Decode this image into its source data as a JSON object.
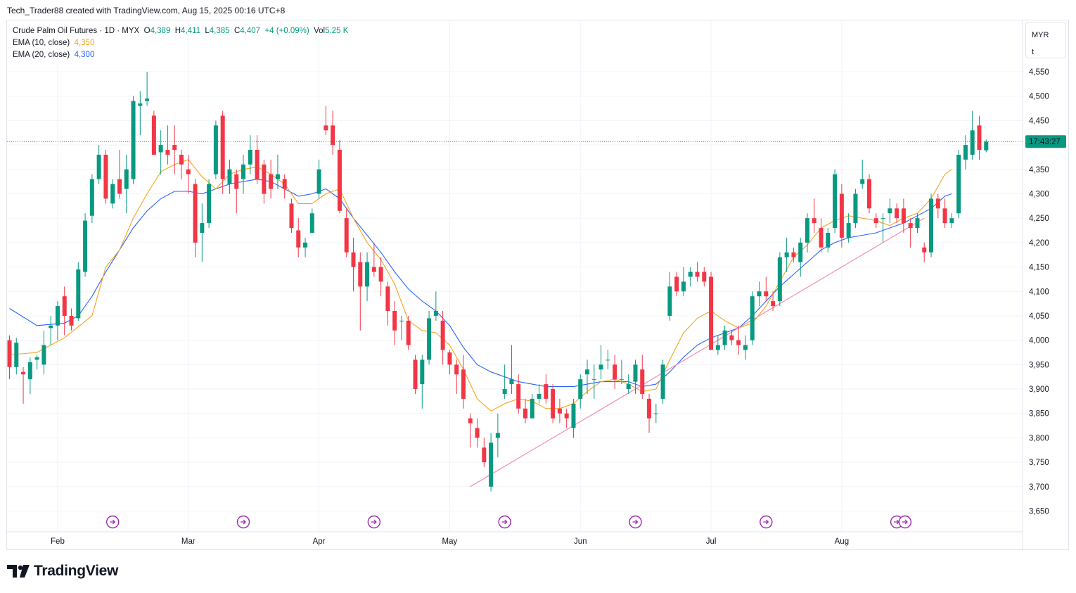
{
  "header": {
    "caption": "Tech_Trader88 created with TradingView.com, Aug 15, 2025 00:16 UTC+8"
  },
  "legend": {
    "symbol": "Crude Palm Oil Futures · 1D · MYX",
    "o_label": "O",
    "o_value": "4,389",
    "h_label": "H",
    "h_value": "4,411",
    "l_label": "L",
    "l_value": "4,385",
    "c_label": "C",
    "c_value": "4,407",
    "change": "+4 (+0.09%)",
    "vol_label": "Vol",
    "vol_value": "5.25 K",
    "ema10_label": "EMA (10, close)",
    "ema10_value": "4,350",
    "ema20_label": "EMA (20, close)",
    "ema20_value": "4,300"
  },
  "currency": {
    "code": "MYR",
    "unit": "t"
  },
  "countdown": "17:43:27",
  "brand": {
    "name": "TradingView"
  },
  "colors": {
    "up": "#089981",
    "down": "#f23645",
    "ema10": "#f7a21b",
    "ema20": "#2962ff",
    "trendline": "#f48fb1",
    "event_marker": "#9c27b0",
    "grid": "#f0f3fa"
  },
  "chart_data": {
    "type": "candlestick",
    "ylim": [
      3620,
      4600
    ],
    "y_ticks": [
      3650,
      3700,
      3750,
      3800,
      3850,
      3900,
      3950,
      4000,
      4050,
      4100,
      4150,
      4200,
      4250,
      4300,
      4350,
      4400,
      4450,
      4500,
      4550
    ],
    "y_tick_labels": [
      "3,650",
      "3,700",
      "3,750",
      "3,800",
      "3,850",
      "3,900",
      "3,950",
      "4,000",
      "4,050",
      "4,100",
      "4,150",
      "4,200",
      "4,250",
      "4,300",
      "4,350",
      "",
      "4,450",
      "4,500",
      "4,550"
    ],
    "x_ticks": [
      {
        "label": "Feb",
        "bar": 7
      },
      {
        "label": "Mar",
        "bar": 26
      },
      {
        "label": "Apr",
        "bar": 45
      },
      {
        "label": "May",
        "bar": 64
      },
      {
        "label": "Jun",
        "bar": 83
      },
      {
        "label": "Jul",
        "bar": 102
      },
      {
        "label": "Aug",
        "bar": 121
      }
    ],
    "current_price": 4407,
    "ohlc": [
      [
        4000,
        4010,
        3920,
        3945
      ],
      [
        3945,
        4005,
        3930,
        3995
      ],
      [
        3935,
        3945,
        3870,
        3930
      ],
      [
        3920,
        3965,
        3890,
        3955
      ],
      [
        3960,
        3970,
        3940,
        3965
      ],
      [
        3950,
        4020,
        3930,
        3990
      ],
      [
        4025,
        4050,
        3990,
        4030
      ],
      [
        4030,
        4080,
        4000,
        4070
      ],
      [
        4090,
        4110,
        4010,
        4050
      ],
      [
        4050,
        4065,
        4020,
        4030
      ],
      [
        4045,
        4160,
        4040,
        4145
      ],
      [
        4140,
        4260,
        4130,
        4245
      ],
      [
        4255,
        4340,
        4240,
        4330
      ],
      [
        4330,
        4400,
        4320,
        4380
      ],
      [
        4380,
        4390,
        4280,
        4290
      ],
      [
        4280,
        4330,
        4270,
        4320
      ],
      [
        4330,
        4390,
        4290,
        4300
      ],
      [
        4310,
        4380,
        4260,
        4350
      ],
      [
        4330,
        4500,
        4320,
        4490
      ],
      [
        4480,
        4510,
        4420,
        4485
      ],
      [
        4490,
        4550,
        4480,
        4495
      ],
      [
        4460,
        4470,
        4380,
        4380
      ],
      [
        4385,
        4430,
        4340,
        4400
      ],
      [
        4390,
        4440,
        4360,
        4380
      ],
      [
        4400,
        4440,
        4340,
        4390
      ],
      [
        4380,
        4390,
        4330,
        4360
      ],
      [
        4350,
        4380,
        4300,
        4340
      ],
      [
        4320,
        4330,
        4170,
        4200
      ],
      [
        4220,
        4280,
        4160,
        4240
      ],
      [
        4240,
        4330,
        4230,
        4320
      ],
      [
        4340,
        4450,
        4330,
        4440
      ],
      [
        4460,
        4470,
        4300,
        4330
      ],
      [
        4320,
        4370,
        4300,
        4350
      ],
      [
        4340,
        4350,
        4260,
        4310
      ],
      [
        4330,
        4380,
        4300,
        4360
      ],
      [
        4360,
        4420,
        4340,
        4390
      ],
      [
        4390,
        4420,
        4320,
        4330
      ],
      [
        4360,
        4370,
        4280,
        4300
      ],
      [
        4340,
        4370,
        4290,
        4310
      ],
      [
        4330,
        4380,
        4310,
        4340
      ],
      [
        4330,
        4340,
        4290,
        4310
      ],
      [
        4280,
        4290,
        4220,
        4230
      ],
      [
        4225,
        4250,
        4170,
        4190
      ],
      [
        4190,
        4210,
        4170,
        4200
      ],
      [
        4220,
        4270,
        4220,
        4260
      ],
      [
        4300,
        4370,
        4290,
        4350
      ],
      [
        4440,
        4480,
        4420,
        4430
      ],
      [
        4440,
        4470,
        4380,
        4400
      ],
      [
        4390,
        4410,
        4260,
        4265
      ],
      [
        4250,
        4270,
        4170,
        4180
      ],
      [
        4180,
        4210,
        4100,
        4150
      ],
      [
        4160,
        4180,
        4020,
        4110
      ],
      [
        4110,
        4180,
        4080,
        4160
      ],
      [
        4150,
        4200,
        4130,
        4140
      ],
      [
        4150,
        4170,
        4090,
        4120
      ],
      [
        4110,
        4120,
        4030,
        4060
      ],
      [
        4060,
        4080,
        3990,
        4020
      ],
      [
        4040,
        4050,
        4000,
        4040
      ],
      [
        4040,
        4050,
        3980,
        3990
      ],
      [
        3960,
        3970,
        3890,
        3900
      ],
      [
        3910,
        3970,
        3860,
        3960
      ],
      [
        3960,
        4060,
        3950,
        4045
      ],
      [
        4050,
        4100,
        4040,
        4060
      ],
      [
        4040,
        4060,
        3950,
        3980
      ],
      [
        3975,
        3980,
        3930,
        3950
      ],
      [
        3950,
        3960,
        3890,
        3930
      ],
      [
        3940,
        3970,
        3860,
        3880
      ],
      [
        3840,
        3850,
        3780,
        3830
      ],
      [
        3820,
        3840,
        3780,
        3800
      ],
      [
        3780,
        3800,
        3740,
        3750
      ],
      [
        3700,
        3810,
        3690,
        3790
      ],
      [
        3800,
        3850,
        3760,
        3810
      ],
      [
        3890,
        3950,
        3880,
        3900
      ],
      [
        3910,
        3990,
        3890,
        3920
      ],
      [
        3910,
        3930,
        3850,
        3860
      ],
      [
        3860,
        3880,
        3830,
        3840
      ],
      [
        3840,
        3890,
        3840,
        3880
      ],
      [
        3880,
        3910,
        3870,
        3890
      ],
      [
        3910,
        3930,
        3870,
        3880
      ],
      [
        3900,
        3910,
        3830,
        3840
      ],
      [
        3860,
        3880,
        3830,
        3850
      ],
      [
        3850,
        3860,
        3820,
        3840
      ],
      [
        3820,
        3880,
        3800,
        3870
      ],
      [
        3880,
        3930,
        3860,
        3920
      ],
      [
        3930,
        3960,
        3890,
        3940
      ],
      [
        3920,
        3950,
        3880,
        3920
      ],
      [
        3940,
        3990,
        3920,
        3950
      ],
      [
        3960,
        3980,
        3940,
        3960
      ],
      [
        3950,
        3970,
        3900,
        3920
      ],
      [
        3920,
        3960,
        3910,
        3920
      ],
      [
        3900,
        3930,
        3890,
        3910
      ],
      [
        3915,
        3960,
        3890,
        3950
      ],
      [
        3940,
        3970,
        3880,
        3890
      ],
      [
        3880,
        3890,
        3810,
        3840
      ],
      [
        3850,
        3870,
        3830,
        3850
      ],
      [
        3880,
        3960,
        3870,
        3950
      ],
      [
        4050,
        4140,
        4040,
        4110
      ],
      [
        4130,
        4140,
        4090,
        4100
      ],
      [
        4100,
        4150,
        4090,
        4120
      ],
      [
        4130,
        4150,
        4110,
        4140
      ],
      [
        4140,
        4160,
        4120,
        4130
      ],
      [
        4140,
        4150,
        4110,
        4120
      ],
      [
        4130,
        4140,
        3980,
        3980
      ],
      [
        3980,
        4010,
        3970,
        3990
      ],
      [
        3990,
        4030,
        3980,
        4020
      ],
      [
        4010,
        4020,
        3990,
        4000
      ],
      [
        4000,
        4030,
        3970,
        3990
      ],
      [
        3980,
        4010,
        3960,
        3990
      ],
      [
        4000,
        4100,
        3990,
        4090
      ],
      [
        4090,
        4120,
        4070,
        4100
      ],
      [
        4100,
        4130,
        4080,
        4090
      ],
      [
        4080,
        4100,
        4060,
        4070
      ],
      [
        4080,
        4180,
        4070,
        4170
      ],
      [
        4170,
        4210,
        4140,
        4180
      ],
      [
        4180,
        4190,
        4160,
        4170
      ],
      [
        4160,
        4210,
        4130,
        4200
      ],
      [
        4200,
        4260,
        4180,
        4250
      ],
      [
        4250,
        4290,
        4220,
        4240
      ],
      [
        4230,
        4250,
        4180,
        4190
      ],
      [
        4190,
        4230,
        4180,
        4220
      ],
      [
        4230,
        4350,
        4220,
        4340
      ],
      [
        4300,
        4320,
        4190,
        4210
      ],
      [
        4210,
        4260,
        4200,
        4240
      ],
      [
        4240,
        4310,
        4230,
        4300
      ],
      [
        4320,
        4370,
        4310,
        4330
      ],
      [
        4330,
        4340,
        4260,
        4270
      ],
      [
        4250,
        4260,
        4230,
        4240
      ],
      [
        4250,
        4260,
        4200,
        4250
      ],
      [
        4260,
        4290,
        4240,
        4270
      ],
      [
        4270,
        4280,
        4240,
        4250
      ],
      [
        4270,
        4290,
        4220,
        4240
      ],
      [
        4240,
        4250,
        4190,
        4230
      ],
      [
        4230,
        4260,
        4220,
        4250
      ],
      [
        4190,
        4200,
        4160,
        4180
      ],
      [
        4180,
        4300,
        4170,
        4290
      ],
      [
        4290,
        4300,
        4250,
        4270
      ],
      [
        4270,
        4290,
        4230,
        4240
      ],
      [
        4240,
        4260,
        4230,
        4250
      ],
      [
        4260,
        4390,
        4250,
        4380
      ],
      [
        4370,
        4420,
        4350,
        4400
      ],
      [
        4380,
        4470,
        4370,
        4430
      ],
      [
        4440,
        4460,
        4370,
        4390
      ],
      [
        4389,
        4411,
        4385,
        4407
      ]
    ],
    "ema10": [
      [
        0,
        3970
      ],
      [
        4,
        3975
      ],
      [
        8,
        4005
      ],
      [
        12,
        4050
      ],
      [
        14,
        4150
      ],
      [
        16,
        4185
      ],
      [
        18,
        4250
      ],
      [
        20,
        4300
      ],
      [
        22,
        4345
      ],
      [
        24,
        4360
      ],
      [
        26,
        4370
      ],
      [
        28,
        4335
      ],
      [
        30,
        4310
      ],
      [
        32,
        4340
      ],
      [
        34,
        4350
      ],
      [
        36,
        4355
      ],
      [
        38,
        4340
      ],
      [
        40,
        4320
      ],
      [
        42,
        4280
      ],
      [
        44,
        4280
      ],
      [
        46,
        4300
      ],
      [
        48,
        4310
      ],
      [
        50,
        4250
      ],
      [
        52,
        4200
      ],
      [
        54,
        4165
      ],
      [
        56,
        4115
      ],
      [
        58,
        4040
      ],
      [
        60,
        4020
      ],
      [
        62,
        4015
      ],
      [
        64,
        3990
      ],
      [
        66,
        3940
      ],
      [
        68,
        3880
      ],
      [
        70,
        3855
      ],
      [
        72,
        3870
      ],
      [
        74,
        3880
      ],
      [
        76,
        3875
      ],
      [
        78,
        3860
      ],
      [
        80,
        3860
      ],
      [
        82,
        3870
      ],
      [
        84,
        3895
      ],
      [
        86,
        3915
      ],
      [
        88,
        3920
      ],
      [
        90,
        3910
      ],
      [
        92,
        3895
      ],
      [
        94,
        3900
      ],
      [
        96,
        3960
      ],
      [
        98,
        4015
      ],
      [
        100,
        4045
      ],
      [
        102,
        4060
      ],
      [
        104,
        4040
      ],
      [
        106,
        4025
      ],
      [
        108,
        4035
      ],
      [
        110,
        4070
      ],
      [
        112,
        4120
      ],
      [
        114,
        4170
      ],
      [
        116,
        4195
      ],
      [
        118,
        4230
      ],
      [
        120,
        4245
      ],
      [
        122,
        4255
      ],
      [
        124,
        4250
      ],
      [
        126,
        4245
      ],
      [
        128,
        4235
      ],
      [
        130,
        4250
      ],
      [
        132,
        4260
      ],
      [
        134,
        4290
      ],
      [
        136,
        4340
      ],
      [
        137,
        4350
      ]
    ],
    "ema20": [
      [
        0,
        4065
      ],
      [
        4,
        4030
      ],
      [
        8,
        4035
      ],
      [
        10,
        4050
      ],
      [
        12,
        4090
      ],
      [
        14,
        4140
      ],
      [
        16,
        4185
      ],
      [
        18,
        4230
      ],
      [
        20,
        4265
      ],
      [
        22,
        4290
      ],
      [
        24,
        4305
      ],
      [
        26,
        4305
      ],
      [
        28,
        4300
      ],
      [
        30,
        4310
      ],
      [
        32,
        4320
      ],
      [
        34,
        4325
      ],
      [
        36,
        4330
      ],
      [
        38,
        4325
      ],
      [
        40,
        4310
      ],
      [
        42,
        4295
      ],
      [
        44,
        4300
      ],
      [
        46,
        4310
      ],
      [
        48,
        4290
      ],
      [
        50,
        4250
      ],
      [
        52,
        4215
      ],
      [
        54,
        4180
      ],
      [
        56,
        4140
      ],
      [
        58,
        4105
      ],
      [
        60,
        4080
      ],
      [
        62,
        4060
      ],
      [
        64,
        4030
      ],
      [
        66,
        3985
      ],
      [
        68,
        3950
      ],
      [
        70,
        3935
      ],
      [
        72,
        3925
      ],
      [
        74,
        3915
      ],
      [
        76,
        3910
      ],
      [
        78,
        3905
      ],
      [
        80,
        3905
      ],
      [
        82,
        3905
      ],
      [
        84,
        3910
      ],
      [
        86,
        3915
      ],
      [
        88,
        3915
      ],
      [
        90,
        3915
      ],
      [
        92,
        3905
      ],
      [
        94,
        3910
      ],
      [
        96,
        3935
      ],
      [
        98,
        3965
      ],
      [
        100,
        3990
      ],
      [
        102,
        4005
      ],
      [
        104,
        4015
      ],
      [
        106,
        4025
      ],
      [
        108,
        4050
      ],
      [
        110,
        4080
      ],
      [
        112,
        4110
      ],
      [
        114,
        4135
      ],
      [
        116,
        4160
      ],
      [
        118,
        4185
      ],
      [
        120,
        4200
      ],
      [
        122,
        4210
      ],
      [
        124,
        4215
      ],
      [
        126,
        4220
      ],
      [
        128,
        4230
      ],
      [
        130,
        4240
      ],
      [
        132,
        4255
      ],
      [
        134,
        4270
      ],
      [
        136,
        4295
      ],
      [
        137,
        4300
      ]
    ],
    "trendline": [
      [
        67,
        3700
      ],
      [
        133,
        4250
      ]
    ],
    "event_marker_bars": [
      15,
      34,
      53,
      72,
      91,
      110,
      129,
      130
    ]
  }
}
